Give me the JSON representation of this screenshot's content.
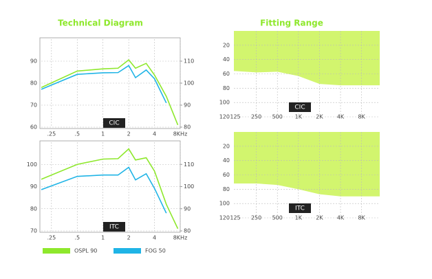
{
  "headings": [
    "Technical Diagram",
    "Fitting Range"
  ],
  "chart_data": [
    {
      "type": "line",
      "label": "CIC",
      "log_x": true,
      "grid": true,
      "x": [
        0.19,
        0.5,
        1,
        1.5,
        2,
        2.4,
        3.2,
        4,
        5.5,
        7.5
      ],
      "xlim": [
        0.19,
        8
      ],
      "xticks": [
        {
          "value": 0.25,
          "label": ".25"
        },
        {
          "value": 0.5,
          "label": ".5"
        },
        1,
        2,
        4,
        {
          "value": 8,
          "label": "8KHz"
        }
      ],
      "ylim": [
        60,
        100
      ],
      "yticks": [
        60,
        70,
        80,
        90
      ],
      "y2lim": [
        80,
        120
      ],
      "y2ticks": [
        80,
        90,
        100,
        110
      ],
      "series": [
        {
          "name": "OSPL 90",
          "color": "#8ee82c",
          "axis": "y2",
          "values": [
            98,
            105.5,
            106.5,
            106.8,
            110.6,
            106.8,
            109,
            103.7,
            94,
            81
          ]
        },
        {
          "name": "FOG 50",
          "color": "#1fb4e6",
          "values": [
            77.2,
            84,
            84.7,
            84.8,
            88,
            82.5,
            86,
            82,
            71,
            null
          ]
        }
      ]
    },
    {
      "type": "line",
      "label": "ITC",
      "log_x": true,
      "grid": true,
      "x": [
        0.19,
        0.5,
        1,
        1.5,
        2,
        2.4,
        3.2,
        4,
        5.5,
        7.5
      ],
      "xlim": [
        0.19,
        8
      ],
      "xticks": [
        {
          "value": 0.25,
          "label": ".25"
        },
        {
          "value": 0.5,
          "label": ".5"
        },
        1,
        2,
        4,
        {
          "value": 8,
          "label": "8KHz"
        }
      ],
      "ylim": [
        70,
        110
      ],
      "yticks": [
        70,
        80,
        90,
        100
      ],
      "y2lim": [
        80,
        120
      ],
      "y2ticks": [
        80,
        90,
        100,
        110
      ],
      "series": [
        {
          "name": "OSPL 90",
          "color": "#8ee82c",
          "axis": "y2",
          "values": [
            103.3,
            110,
            112.4,
            112.6,
            117,
            112,
            113,
            107,
            92,
            81
          ]
        },
        {
          "name": "FOG 50",
          "color": "#1fb4e6",
          "values": [
            88.6,
            94.6,
            95.2,
            95.2,
            98.7,
            93,
            95.8,
            89.2,
            78,
            null
          ]
        }
      ]
    },
    {
      "type": "area",
      "label": "CIC",
      "grid": true,
      "y_inverted": true,
      "color": "#d2f56e",
      "categories": [
        "125",
        "250",
        "500",
        "1K",
        "2K",
        "4K",
        "8K"
      ],
      "values": [
        56,
        58,
        57,
        63,
        74,
        76,
        76
      ],
      "ylim": [
        0,
        120
      ],
      "yticks": [
        20,
        40,
        60,
        80,
        100,
        120
      ]
    },
    {
      "type": "area",
      "label": "ITC",
      "grid": true,
      "y_inverted": true,
      "color": "#d2f56e",
      "categories": [
        "125",
        "250",
        "500",
        "1K",
        "2K",
        "4K",
        "8K"
      ],
      "values": [
        72,
        72,
        74,
        80,
        87,
        90,
        90
      ],
      "ylim": [
        0,
        120
      ],
      "yticks": [
        20,
        40,
        60,
        80,
        100,
        120
      ]
    }
  ]
}
